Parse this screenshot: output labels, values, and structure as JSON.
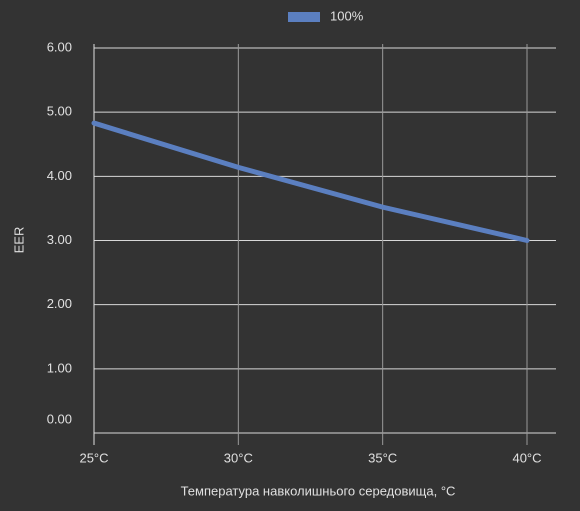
{
  "chart_data": {
    "type": "line",
    "categories": [
      "25°C",
      "30°C",
      "35°C",
      "40°C"
    ],
    "series": [
      {
        "name": "100%",
        "color": "#5b7fc0",
        "values": [
          4.83,
          4.14,
          3.52,
          3.0
        ]
      }
    ],
    "ylabel": "EER",
    "xlabel": "Температура навколишнього середовища, °C",
    "ylim": [
      0,
      6
    ],
    "yticks": [
      {
        "value": 0,
        "label": "0.00"
      },
      {
        "value": 1,
        "label": "1.00"
      },
      {
        "value": 2,
        "label": "2.00"
      },
      {
        "value": 3,
        "label": "3.00"
      },
      {
        "value": 4,
        "label": "4.00"
      },
      {
        "value": 5,
        "label": "5.00"
      },
      {
        "value": 6,
        "label": "6.00"
      }
    ],
    "grid": true,
    "legend": "top"
  }
}
